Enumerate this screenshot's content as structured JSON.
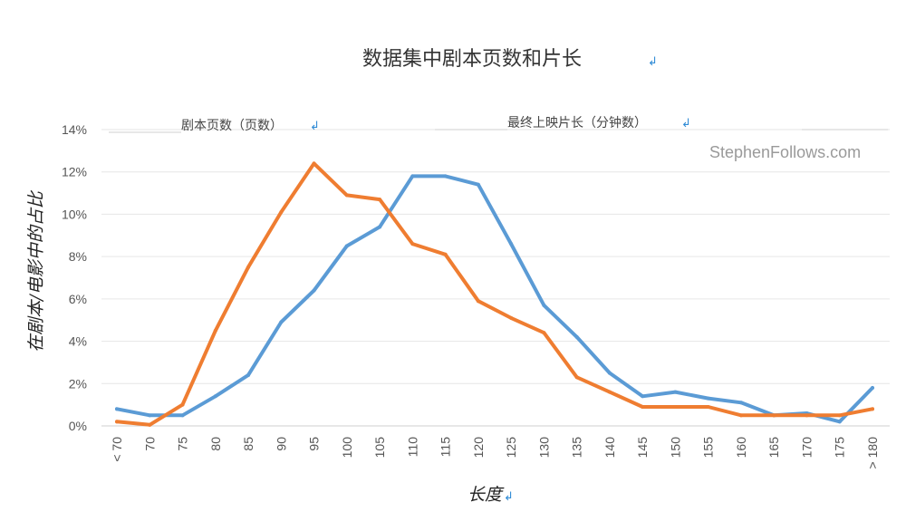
{
  "chart_data": {
    "type": "line",
    "title": "数据集中剧本页数和片长",
    "xlabel": "长度",
    "ylabel": "在剧本/电影中的占比",
    "watermark": "StephenFollows.com",
    "categories": [
      "< 70",
      "70",
      "75",
      "80",
      "85",
      "90",
      "95",
      "100",
      "105",
      "110",
      "115",
      "120",
      "125",
      "130",
      "135",
      "140",
      "145",
      "150",
      "155",
      "160",
      "165",
      "170",
      "175",
      "> 180"
    ],
    "yticks": [
      "0%",
      "2%",
      "4%",
      "6%",
      "8%",
      "10%",
      "12%",
      "14%"
    ],
    "ylim": [
      0,
      14
    ],
    "grid": true,
    "legend_position": "top",
    "series": [
      {
        "name": "剧本页数（页数）",
        "color": "#ef7d31",
        "values": [
          0.2,
          0.05,
          1.0,
          4.5,
          7.5,
          10.1,
          12.4,
          10.9,
          10.7,
          8.6,
          8.1,
          5.9,
          5.1,
          4.4,
          2.3,
          1.6,
          0.9,
          0.9,
          0.9,
          0.5,
          0.5,
          0.5,
          0.5,
          0.8
        ]
      },
      {
        "name": "最终上映片长（分钟数）",
        "color": "#5b9bd5",
        "values": [
          0.8,
          0.5,
          0.5,
          1.4,
          2.4,
          4.9,
          6.4,
          8.5,
          9.4,
          11.8,
          11.8,
          11.4,
          8.6,
          5.7,
          4.2,
          2.5,
          1.4,
          1.6,
          1.3,
          1.1,
          0.5,
          0.6,
          0.2,
          1.8
        ]
      }
    ]
  }
}
